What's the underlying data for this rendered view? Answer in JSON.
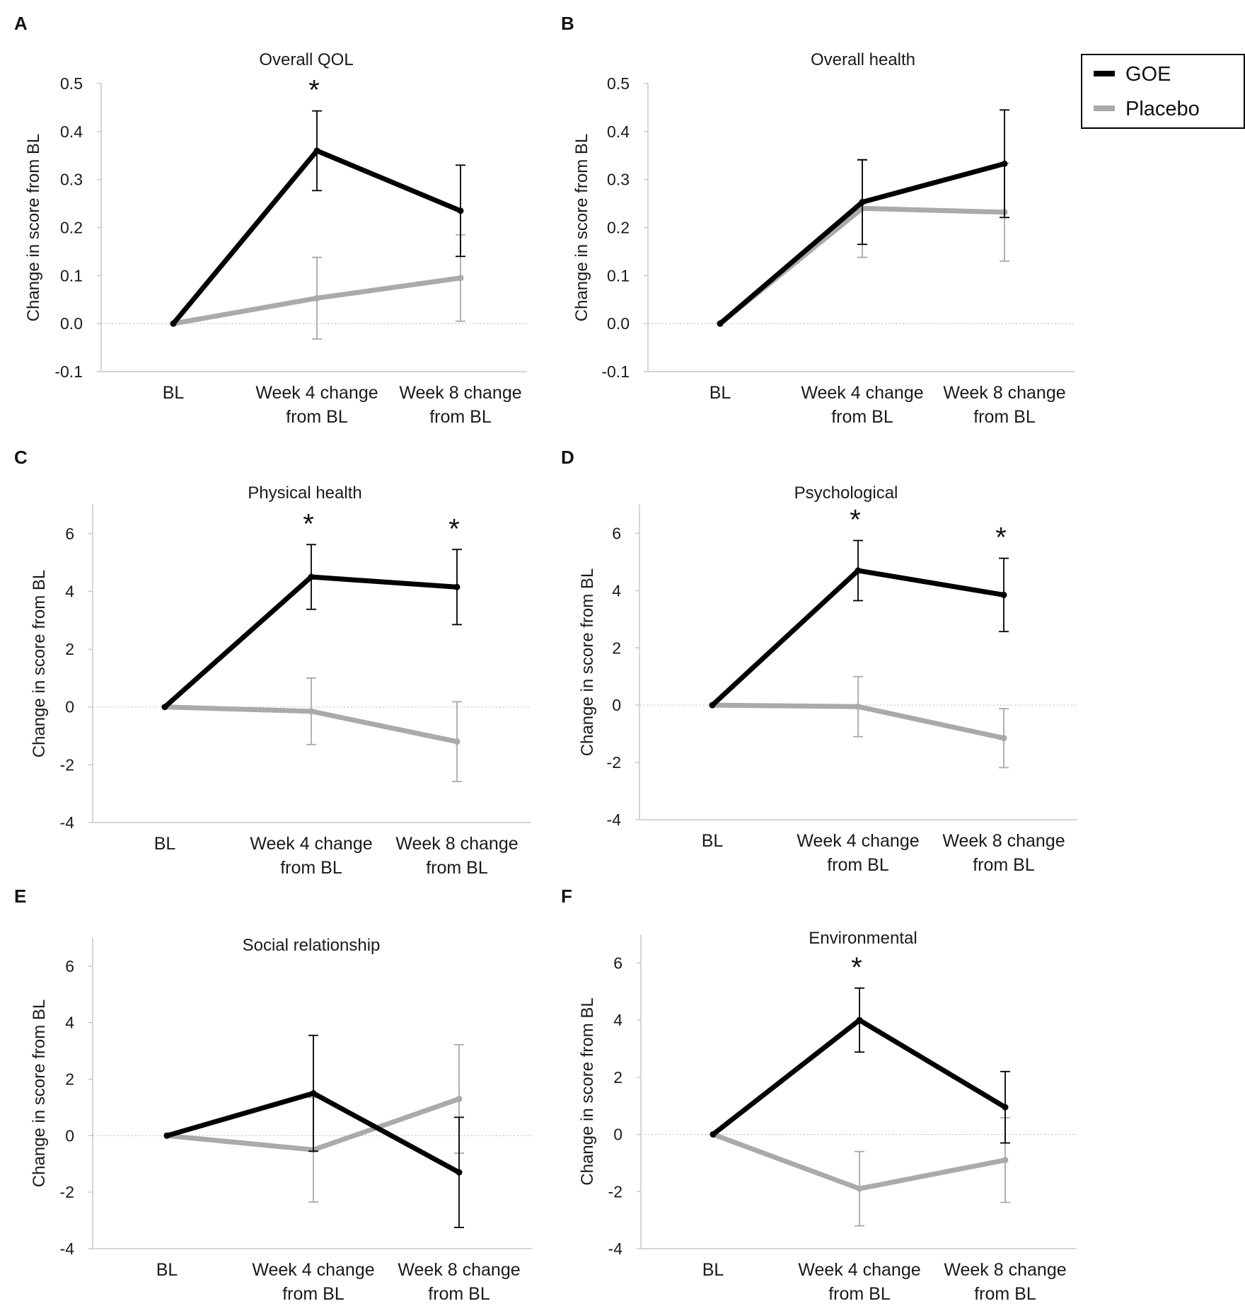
{
  "legend": {
    "items": [
      {
        "name": "GOE",
        "color": "#000000"
      },
      {
        "name": "Placebo",
        "color": "#aaaaaa"
      }
    ]
  },
  "chart_data": [
    {
      "letter": "A",
      "type": "line",
      "title": "Overall QOL",
      "ylabel": "Change in score from BL",
      "categories": [
        "BL",
        "Week 4 change\nfrom BL",
        "Week 8 change\nfrom BL"
      ],
      "ylim": [
        -0.1,
        0.5
      ],
      "yticks": [
        -0.1,
        0.0,
        0.1,
        0.2,
        0.3,
        0.4,
        0.5
      ],
      "decimals": 1,
      "series": [
        {
          "name": "GOE",
          "values": [
            0,
            0.36,
            0.235
          ],
          "err": [
            0,
            0.083,
            0.095
          ]
        },
        {
          "name": "Placebo",
          "values": [
            0,
            0.053,
            0.095
          ],
          "err": [
            0,
            0.085,
            0.09
          ]
        }
      ],
      "significance": [
        "",
        "*",
        ""
      ]
    },
    {
      "letter": "B",
      "type": "line",
      "title": "Overall health",
      "ylabel": "Change in score from BL",
      "categories": [
        "BL",
        "Week 4 change\nfrom BL",
        "Week 8 change\nfrom BL"
      ],
      "ylim": [
        -0.1,
        0.5
      ],
      "yticks": [
        -0.1,
        0.0,
        0.1,
        0.2,
        0.3,
        0.4,
        0.5
      ],
      "decimals": 1,
      "series": [
        {
          "name": "GOE",
          "values": [
            0,
            0.253,
            0.333
          ],
          "err": [
            0,
            0.088,
            0.112
          ]
        },
        {
          "name": "Placebo",
          "values": [
            0,
            0.24,
            0.232
          ],
          "err": [
            0,
            0.102,
            0.102
          ]
        }
      ],
      "significance": [
        "",
        "",
        ""
      ]
    },
    {
      "letter": "C",
      "type": "line",
      "title": "Physical health",
      "ylabel": "Change in score from BL",
      "categories": [
        "BL",
        "Week 4 change\nfrom BL",
        "Week 8 change\nfrom BL"
      ],
      "ylim": [
        -4,
        7
      ],
      "yticks": [
        -4,
        -2,
        0,
        2,
        4,
        6
      ],
      "decimals": 0,
      "series": [
        {
          "name": "GOE",
          "values": [
            0,
            4.5,
            4.15
          ],
          "err": [
            0,
            1.12,
            1.3
          ]
        },
        {
          "name": "Placebo",
          "values": [
            0,
            -0.15,
            -1.2
          ],
          "err": [
            0,
            1.15,
            1.38
          ]
        }
      ],
      "significance": [
        "",
        "*",
        "*"
      ]
    },
    {
      "letter": "D",
      "type": "line",
      "title": "Psychological",
      "ylabel": "Change in score from BL",
      "categories": [
        "BL",
        "Week 4 change\nfrom BL",
        "Week 8 change\nfrom BL"
      ],
      "ylim": [
        -4,
        7
      ],
      "yticks": [
        -4,
        -2,
        0,
        2,
        4,
        6
      ],
      "decimals": 0,
      "series": [
        {
          "name": "GOE",
          "values": [
            0,
            4.7,
            3.85
          ],
          "err": [
            0,
            1.05,
            1.28
          ]
        },
        {
          "name": "Placebo",
          "values": [
            0,
            -0.05,
            -1.15
          ],
          "err": [
            0,
            1.05,
            1.03
          ]
        }
      ],
      "significance": [
        "",
        "*",
        "*"
      ]
    },
    {
      "letter": "E",
      "type": "line",
      "title": "Social relationship",
      "ylabel": "Change in score from BL",
      "categories": [
        "BL",
        "Week 4 change\nfrom BL",
        "Week 8 change\nfrom BL"
      ],
      "ylim": [
        -4,
        7
      ],
      "yticks": [
        -4,
        -2,
        0,
        2,
        4,
        6
      ],
      "decimals": 0,
      "series": [
        {
          "name": "GOE",
          "values": [
            0,
            1.5,
            -1.3
          ],
          "err": [
            0,
            2.05,
            1.95
          ]
        },
        {
          "name": "Placebo",
          "values": [
            0,
            -0.5,
            1.3
          ],
          "err": [
            0,
            1.85,
            1.92
          ]
        }
      ],
      "significance": [
        "",
        "",
        ""
      ]
    },
    {
      "letter": "F",
      "type": "line",
      "title": "Environmental",
      "ylabel": "Change in score from BL",
      "categories": [
        "BL",
        "Week 4 change\nfrom BL",
        "Week 8 change\nfrom BL"
      ],
      "ylim": [
        -4,
        7
      ],
      "yticks": [
        -4,
        -2,
        0,
        2,
        4,
        6
      ],
      "decimals": 0,
      "series": [
        {
          "name": "GOE",
          "values": [
            0,
            4.0,
            0.95
          ],
          "err": [
            0,
            1.12,
            1.25
          ]
        },
        {
          "name": "Placebo",
          "values": [
            0,
            -1.9,
            -0.9
          ],
          "err": [
            0,
            1.3,
            1.48
          ]
        }
      ],
      "significance": [
        "",
        "*",
        ""
      ]
    }
  ]
}
